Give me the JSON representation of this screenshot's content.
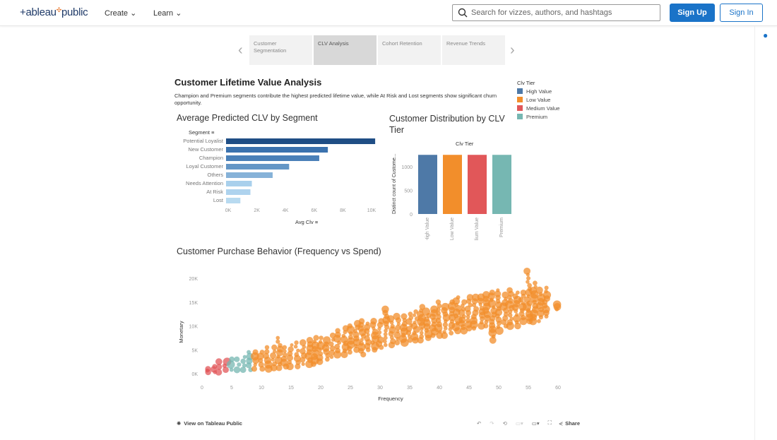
{
  "header": {
    "logo": "+ableau public",
    "nav": [
      "Create",
      "Learn"
    ],
    "search_placeholder": "Search for vizzes, authors, and hashtags",
    "signup": "Sign Up",
    "signin": "Sign In"
  },
  "tabs": [
    {
      "label": "Customer Segmentation",
      "active": false
    },
    {
      "label": "CLV Analysis",
      "active": true
    },
    {
      "label": "Cohort Retention",
      "active": false
    },
    {
      "label": "Revenue Trends",
      "active": false
    }
  ],
  "dashboard": {
    "title": "Customer Lifetime Value Analysis",
    "subtitle": "Champion and Premium segments contribute the highest predicted lifetime value, while At Risk and Lost segments show significant churn opportunity."
  },
  "legend": {
    "title": "Clv Tier",
    "items": [
      {
        "label": "High Value",
        "color": "#4e79a7"
      },
      {
        "label": "Low Value",
        "color": "#f28e2b"
      },
      {
        "label": "Medium Value",
        "color": "#e15759"
      },
      {
        "label": "Premium",
        "color": "#76b7b2"
      }
    ]
  },
  "chart_data": [
    {
      "type": "bar",
      "orientation": "horizontal",
      "title": "Average Predicted CLV by Segment",
      "ylabel": "Segment",
      "xlabel": "Avg Clv",
      "xlim": [
        0,
        10500
      ],
      "xticks": [
        "0K",
        "2K",
        "4K",
        "6K",
        "8K",
        "10K"
      ],
      "categories": [
        "Potential Loyalist",
        "New Customer",
        "Champion",
        "Loyal Customer",
        "Others",
        "Needs Attention",
        "At Risk",
        "Lost"
      ],
      "values": [
        10400,
        7100,
        6500,
        4400,
        3250,
        1800,
        1700,
        1000
      ],
      "colors": [
        "#1f4e85",
        "#3b72ae",
        "#4a80b8",
        "#6496c6",
        "#86b2d8",
        "#a9d0ec",
        "#aed3ee",
        "#b8daf0"
      ]
    },
    {
      "type": "bar",
      "title": "Customer Distribution by CLV Tier",
      "header": "Clv Tier",
      "ylabel": "Distinct count of Custome...",
      "ylim": [
        0,
        1300
      ],
      "yticks": [
        "1000",
        "500",
        "0"
      ],
      "categories": [
        "High Value",
        "Low Value",
        "Medium Value",
        "Premium"
      ],
      "values": [
        1250,
        1250,
        1250,
        1250
      ]
    },
    {
      "type": "scatter",
      "title": "Customer Purchase Behavior (Frequency vs Spend)",
      "xlabel": "Frequency",
      "ylabel": "Monetary",
      "xlim": [
        0,
        60
      ],
      "ylim": [
        0,
        22000
      ],
      "xticks": [
        "0",
        "5",
        "10",
        "15",
        "20",
        "25",
        "30",
        "35",
        "40",
        "45",
        "50",
        "55",
        "60"
      ],
      "yticks": [
        "0K",
        "5K",
        "10K",
        "15K",
        "20K"
      ],
      "bands_note_columns": [
        "frequency",
        "monetary_min",
        "monetary_max",
        "tier"
      ],
      "bands": [
        [
          1,
          300,
          1000,
          "Medium Value"
        ],
        [
          2,
          300,
          1500,
          "Medium Value"
        ],
        [
          3,
          300,
          2500,
          "Medium Value"
        ],
        [
          4,
          800,
          2500,
          "Medium Value"
        ],
        [
          5,
          800,
          3000,
          "Premium"
        ],
        [
          6,
          800,
          3000,
          "Premium"
        ],
        [
          7,
          800,
          3500,
          "Premium"
        ],
        [
          8,
          800,
          4500,
          "Premium"
        ],
        [
          9,
          1000,
          4500,
          "Low Value"
        ],
        [
          10,
          1000,
          4500,
          "Low Value"
        ],
        [
          11,
          1000,
          5500,
          "Low Value"
        ],
        [
          12,
          1200,
          5500,
          "Low Value"
        ],
        [
          13,
          1200,
          7500,
          "Low Value"
        ],
        [
          14,
          1500,
          5500,
          "Low Value"
        ],
        [
          15,
          1500,
          6000,
          "Low Value"
        ],
        [
          16,
          1500,
          6500,
          "Low Value"
        ],
        [
          17,
          2000,
          6500,
          "Low Value"
        ],
        [
          18,
          2000,
          7000,
          "Low Value"
        ],
        [
          19,
          2000,
          7500,
          "Low Value"
        ],
        [
          20,
          2500,
          7500,
          "Low Value"
        ],
        [
          21,
          3000,
          7000,
          "Low Value"
        ],
        [
          22,
          3500,
          8000,
          "Low Value"
        ],
        [
          23,
          4000,
          9000,
          "Low Value"
        ],
        [
          24,
          4000,
          9500,
          "Low Value"
        ],
        [
          25,
          4500,
          10000,
          "Low Value"
        ],
        [
          26,
          5000,
          10500,
          "Low Value"
        ],
        [
          27,
          4000,
          11000,
          "Low Value"
        ],
        [
          28,
          5000,
          10500,
          "Low Value"
        ],
        [
          29,
          5000,
          11000,
          "Low Value"
        ],
        [
          30,
          5500,
          11000,
          "Low Value"
        ],
        [
          31,
          6000,
          13500,
          "Low Value"
        ],
        [
          32,
          6000,
          11500,
          "Low Value"
        ],
        [
          33,
          6500,
          12000,
          "Low Value"
        ],
        [
          34,
          6500,
          12000,
          "Low Value"
        ],
        [
          35,
          7000,
          12500,
          "Low Value"
        ],
        [
          36,
          7000,
          13000,
          "Low Value"
        ],
        [
          37,
          7000,
          14000,
          "Low Value"
        ],
        [
          38,
          7500,
          13000,
          "Low Value"
        ],
        [
          39,
          8000,
          13500,
          "Low Value"
        ],
        [
          40,
          8000,
          15000,
          "Low Value"
        ],
        [
          41,
          8000,
          14000,
          "Low Value"
        ],
        [
          42,
          8500,
          15000,
          "Low Value"
        ],
        [
          43,
          9000,
          16000,
          "Low Value"
        ],
        [
          44,
          9000,
          15000,
          "Low Value"
        ],
        [
          45,
          9500,
          16000,
          "Low Value"
        ],
        [
          46,
          9500,
          16000,
          "Low Value"
        ],
        [
          47,
          10000,
          16000,
          "Low Value"
        ],
        [
          48,
          10000,
          16500,
          "Low Value"
        ],
        [
          49,
          7000,
          17000,
          "Low Value"
        ],
        [
          50,
          9000,
          17500,
          "Low Value"
        ],
        [
          51,
          10000,
          16500,
          "Low Value"
        ],
        [
          52,
          10000,
          17500,
          "Low Value"
        ],
        [
          53,
          10000,
          17000,
          "Low Value"
        ],
        [
          54,
          11000,
          17000,
          "Low Value"
        ],
        [
          55,
          11000,
          21500,
          "Low Value"
        ],
        [
          56,
          11000,
          19000,
          "Low Value"
        ],
        [
          57,
          11000,
          17500,
          "Low Value"
        ],
        [
          58,
          12000,
          18000,
          "Low Value"
        ],
        [
          60,
          13500,
          14500,
          "Low Value"
        ]
      ]
    }
  ],
  "footer": {
    "view": "View on Tableau Public",
    "share": "Share"
  }
}
